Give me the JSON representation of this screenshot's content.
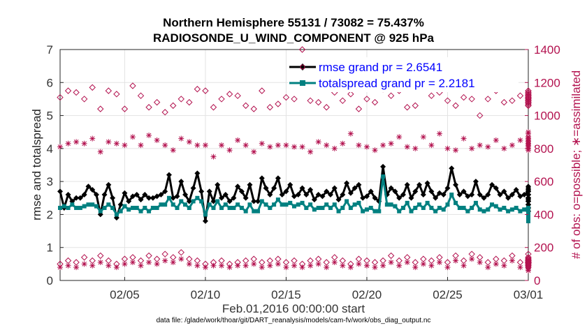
{
  "chart_data": {
    "type": "line",
    "title_line1": "Northern Hemisphere 55131 / 73082 = 75.437%",
    "title_line2": "RADIOSONDE_U_WIND_COMPONENT @ 925 hPa",
    "ylabel_left": "rmse and totalspread",
    "ylabel_right": "# of obs: o=possible; ∗=assimilated",
    "xlabel": "Feb.01,2016 00:00:00 start",
    "footnote": "data file: /glade/work/thoar/git/DART_reanalysis/models/cam-fv/work/obs_diag_output.nc",
    "xlim": [
      1,
      30
    ],
    "ylim_left": [
      0,
      7
    ],
    "ylim_right": [
      0,
      1400
    ],
    "left_ticks": [
      "0",
      "1",
      "2",
      "3",
      "4",
      "5",
      "6",
      "7"
    ],
    "right_ticks": [
      "0",
      "200",
      "400",
      "600",
      "800",
      "1000",
      "1200",
      "1400"
    ],
    "x_ticks": [
      {
        "x": 5,
        "label": "02/05"
      },
      {
        "x": 10,
        "label": "02/10"
      },
      {
        "x": 15,
        "label": "02/15"
      },
      {
        "x": 20,
        "label": "02/20"
      },
      {
        "x": 25,
        "label": "02/25"
      },
      {
        "x": 30,
        "label": "03/01"
      }
    ],
    "grid": true,
    "legend_position": "top-right",
    "legend": [
      {
        "label": "rmse grand pr = 2.6541",
        "color": "#000000",
        "marker": "diamond"
      },
      {
        "label": "totalspread grand pr = 2.2181",
        "color": "#008080",
        "marker": "square"
      }
    ],
    "x_step_days": 0.25,
    "series": [
      {
        "name": "rmse",
        "axis": "left",
        "color": "#000000",
        "values": [
          2.7,
          2.2,
          2.6,
          2.4,
          2.5,
          2.5,
          2.6,
          2.85,
          2.75,
          2.6,
          2.0,
          2.6,
          2.9,
          2.5,
          1.9,
          2.3,
          2.65,
          2.4,
          2.55,
          2.6,
          2.45,
          2.6,
          2.5,
          2.5,
          2.55,
          2.6,
          2.7,
          3.2,
          2.5,
          2.55,
          3.0,
          2.6,
          2.4,
          2.8,
          3.25,
          2.7,
          1.8,
          2.7,
          2.4,
          2.9,
          2.5,
          2.6,
          2.4,
          2.5,
          2.85,
          2.7,
          2.5,
          2.9,
          2.4,
          2.4,
          3.1,
          2.8,
          2.6,
          2.8,
          3.1,
          2.6,
          2.7,
          2.9,
          2.55,
          2.6,
          2.8,
          2.6,
          2.75,
          2.45,
          2.6,
          2.55,
          2.7,
          2.6,
          2.8,
          2.45,
          2.6,
          2.95,
          2.65,
          2.8,
          2.9,
          2.5,
          2.55,
          2.7,
          2.5,
          2.4,
          3.45,
          2.6,
          2.8,
          2.7,
          2.5,
          2.6,
          2.9,
          2.5,
          2.7,
          2.9,
          2.6,
          2.95,
          2.7,
          2.5,
          2.65,
          2.6,
          2.8,
          3.4,
          2.9,
          2.6,
          2.7,
          2.55,
          2.6,
          3.0,
          2.6,
          2.5,
          2.6,
          2.9,
          2.8,
          2.6,
          2.7,
          2.5,
          2.6,
          2.75,
          2.55,
          2.6,
          2.7,
          2.5,
          2.8,
          2.5,
          2.7,
          2.5,
          2.6,
          2.75,
          2.4,
          2.6,
          2.5,
          2.7,
          2.45,
          2.6,
          2.5,
          2.7,
          2.4,
          2.6,
          2.5,
          2.4,
          2.3,
          2.5,
          2.2,
          2.4,
          2.5,
          2.1,
          2.6,
          2.3,
          2.4,
          2.3,
          2.7,
          2.85,
          2.1,
          2.75,
          2.2,
          2.3,
          2.2
        ]
      },
      {
        "name": "totalspread",
        "axis": "left",
        "color": "#008080",
        "values": [
          2.2,
          2.25,
          2.2,
          2.3,
          2.2,
          2.2,
          2.25,
          2.3,
          2.3,
          2.25,
          2.1,
          2.2,
          2.3,
          2.2,
          2.0,
          2.1,
          2.25,
          2.15,
          2.2,
          2.2,
          2.1,
          2.2,
          2.1,
          2.2,
          2.2,
          2.3,
          2.3,
          2.5,
          2.3,
          2.2,
          2.4,
          2.3,
          2.2,
          2.4,
          2.5,
          2.4,
          2.0,
          2.3,
          2.2,
          2.4,
          2.2,
          2.3,
          2.2,
          2.2,
          2.3,
          2.2,
          2.1,
          2.3,
          2.1,
          2.1,
          2.4,
          2.3,
          2.2,
          2.3,
          2.45,
          2.3,
          2.3,
          2.35,
          2.25,
          2.3,
          2.35,
          2.2,
          2.3,
          2.15,
          2.2,
          2.2,
          2.3,
          2.2,
          2.3,
          2.1,
          2.2,
          2.4,
          2.2,
          2.3,
          2.35,
          2.1,
          2.15,
          2.2,
          2.1,
          2.1,
          3.15,
          2.3,
          2.3,
          2.25,
          2.1,
          2.2,
          2.35,
          2.1,
          2.2,
          2.3,
          2.2,
          2.35,
          2.2,
          2.1,
          2.2,
          2.15,
          2.3,
          2.6,
          2.35,
          2.2,
          2.2,
          2.1,
          2.2,
          2.35,
          2.15,
          2.1,
          2.15,
          2.3,
          2.25,
          2.15,
          2.2,
          2.1,
          2.15,
          2.2,
          2.1,
          2.15,
          2.2,
          2.05,
          2.2,
          2.05,
          2.1,
          2.0,
          2.1,
          2.15,
          1.95,
          2.05,
          2.0,
          2.1,
          1.95,
          2.0,
          1.95,
          2.05,
          1.9,
          2.0,
          1.95,
          1.9,
          1.85,
          1.95,
          1.8,
          1.9,
          1.95,
          1.8,
          2.0,
          1.85,
          1.9,
          1.85,
          2.05,
          2.1,
          1.8,
          2.05,
          1.8,
          1.85,
          1.85
        ]
      },
      {
        "name": "obs possible",
        "axis": "right",
        "marker": "circle",
        "color": "#b3124f",
        "x_step_days": 0.5,
        "values": [
          1110,
          1150,
          1140,
          1100,
          1170,
          1040,
          1150,
          1130,
          1040,
          1180,
          1120,
          1050,
          1080,
          1020,
          1060,
          1100,
          1080,
          1160,
          1150,
          1050,
          1100,
          1130,
          1120,
          1060,
          1040,
          1150,
          1050,
          1070,
          1110,
          1100,
          1400,
          1090,
          1080,
          1050,
          1140,
          1090,
          1130,
          1040,
          1100,
          1080,
          1160,
          1120,
          1150,
          1050,
          1060,
          1180,
          1120,
          1140,
          1090,
          1060,
          1110,
          1100,
          1000,
          1100,
          1150,
          1080,
          1090,
          1120,
          1100,
          1120,
          1060,
          1090,
          1140,
          1120,
          1080,
          1090,
          1110,
          1100,
          1150,
          1130,
          1120,
          1110,
          1120,
          1080,
          1090,
          1120,
          1070,
          1110,
          1060,
          1120,
          1080,
          1120,
          1100,
          1090,
          1150,
          1120,
          1060,
          1090,
          1110,
          1140,
          1120,
          1100,
          1130,
          1090,
          1110,
          1070,
          1130,
          1080,
          1100,
          1090,
          1110,
          1120,
          1060,
          1080,
          1120,
          1100,
          1120,
          1110,
          1130,
          1100,
          1120,
          1100,
          1130,
          1110,
          1120,
          1090,
          1100,
          1110
        ]
      },
      {
        "name": "obs assimilated",
        "axis": "right",
        "marker": "asterisk",
        "color": "#b3124f",
        "x_step_days": 0.5,
        "values": [
          810,
          830,
          840,
          830,
          860,
          780,
          840,
          830,
          820,
          870,
          820,
          880,
          850,
          820,
          790,
          860,
          840,
          820,
          820,
          750,
          820,
          790,
          850,
          820,
          780,
          830,
          810,
          820,
          820,
          810,
          810,
          780,
          840,
          820,
          800,
          830,
          890,
          820,
          810,
          790,
          820,
          830,
          870,
          810,
          800,
          870,
          820,
          890,
          800,
          790,
          860,
          800,
          820,
          810,
          850,
          800,
          820,
          850,
          810,
          840,
          890,
          830,
          900,
          870,
          830,
          860,
          820,
          860,
          850,
          820,
          840,
          840,
          810,
          790,
          840,
          840,
          860,
          820,
          850,
          870,
          820,
          830,
          800,
          840,
          810,
          860,
          810,
          830,
          850,
          820,
          830,
          850,
          820,
          840,
          830,
          870,
          850,
          820,
          830,
          850,
          840,
          810,
          830,
          860,
          820,
          840,
          850,
          820,
          830,
          840,
          830,
          830,
          860,
          830,
          850,
          840,
          830,
          850
        ]
      },
      {
        "name": "obs possible (low)",
        "axis": "right",
        "marker": "circle",
        "color": "#b3124f",
        "x_step_days": 0.5,
        "values": [
          100,
          120,
          110,
          140,
          120,
          150,
          120,
          100,
          130,
          140,
          120,
          150,
          130,
          160,
          140,
          170,
          130,
          120,
          100,
          110,
          120,
          100,
          110,
          120,
          130,
          110,
          120,
          130,
          110,
          120,
          100,
          120,
          130,
          110,
          140,
          120,
          100,
          130,
          120,
          110,
          120,
          150,
          120,
          140,
          110,
          130,
          120,
          140,
          110,
          150,
          120,
          160,
          140,
          110,
          130,
          120,
          150,
          110,
          130,
          120,
          110,
          160,
          140,
          100,
          120,
          130,
          110,
          100,
          120,
          100,
          90,
          80,
          110,
          90,
          80,
          90,
          100,
          110,
          120,
          100,
          120,
          130,
          110,
          120,
          140,
          110,
          120,
          130,
          100,
          120,
          90,
          110,
          120,
          110,
          120,
          100,
          130,
          120,
          110,
          120,
          100,
          110,
          120,
          110,
          100,
          120,
          110,
          120,
          100,
          110,
          130,
          120,
          110,
          120,
          110,
          130,
          120,
          110
        ]
      },
      {
        "name": "obs assimilated (low)",
        "axis": "right",
        "marker": "asterisk",
        "color": "#b3124f",
        "x_step_days": 0.5,
        "values": [
          80,
          90,
          80,
          100,
          90,
          110,
          90,
          80,
          100,
          110,
          90,
          110,
          100,
          120,
          110,
          130,
          100,
          90,
          80,
          90,
          90,
          80,
          90,
          90,
          100,
          80,
          90,
          100,
          80,
          90,
          80,
          90,
          100,
          80,
          110,
          90,
          80,
          100,
          90,
          80,
          90,
          110,
          90,
          110,
          80,
          100,
          90,
          110,
          80,
          120,
          90,
          130,
          110,
          80,
          100,
          90,
          120,
          80,
          100,
          90,
          80,
          130,
          110,
          80,
          90,
          100,
          80,
          80,
          90,
          80,
          70,
          60,
          90,
          70,
          60,
          70,
          80,
          90,
          90,
          80,
          90,
          100,
          80,
          90,
          110,
          80,
          90,
          100,
          80,
          90,
          70,
          80,
          90,
          80,
          90,
          80,
          100,
          90,
          80,
          90,
          80,
          80,
          90,
          80,
          80,
          90,
          80,
          90,
          80,
          80,
          100,
          90,
          80,
          90,
          80,
          100,
          90,
          80
        ]
      }
    ]
  }
}
